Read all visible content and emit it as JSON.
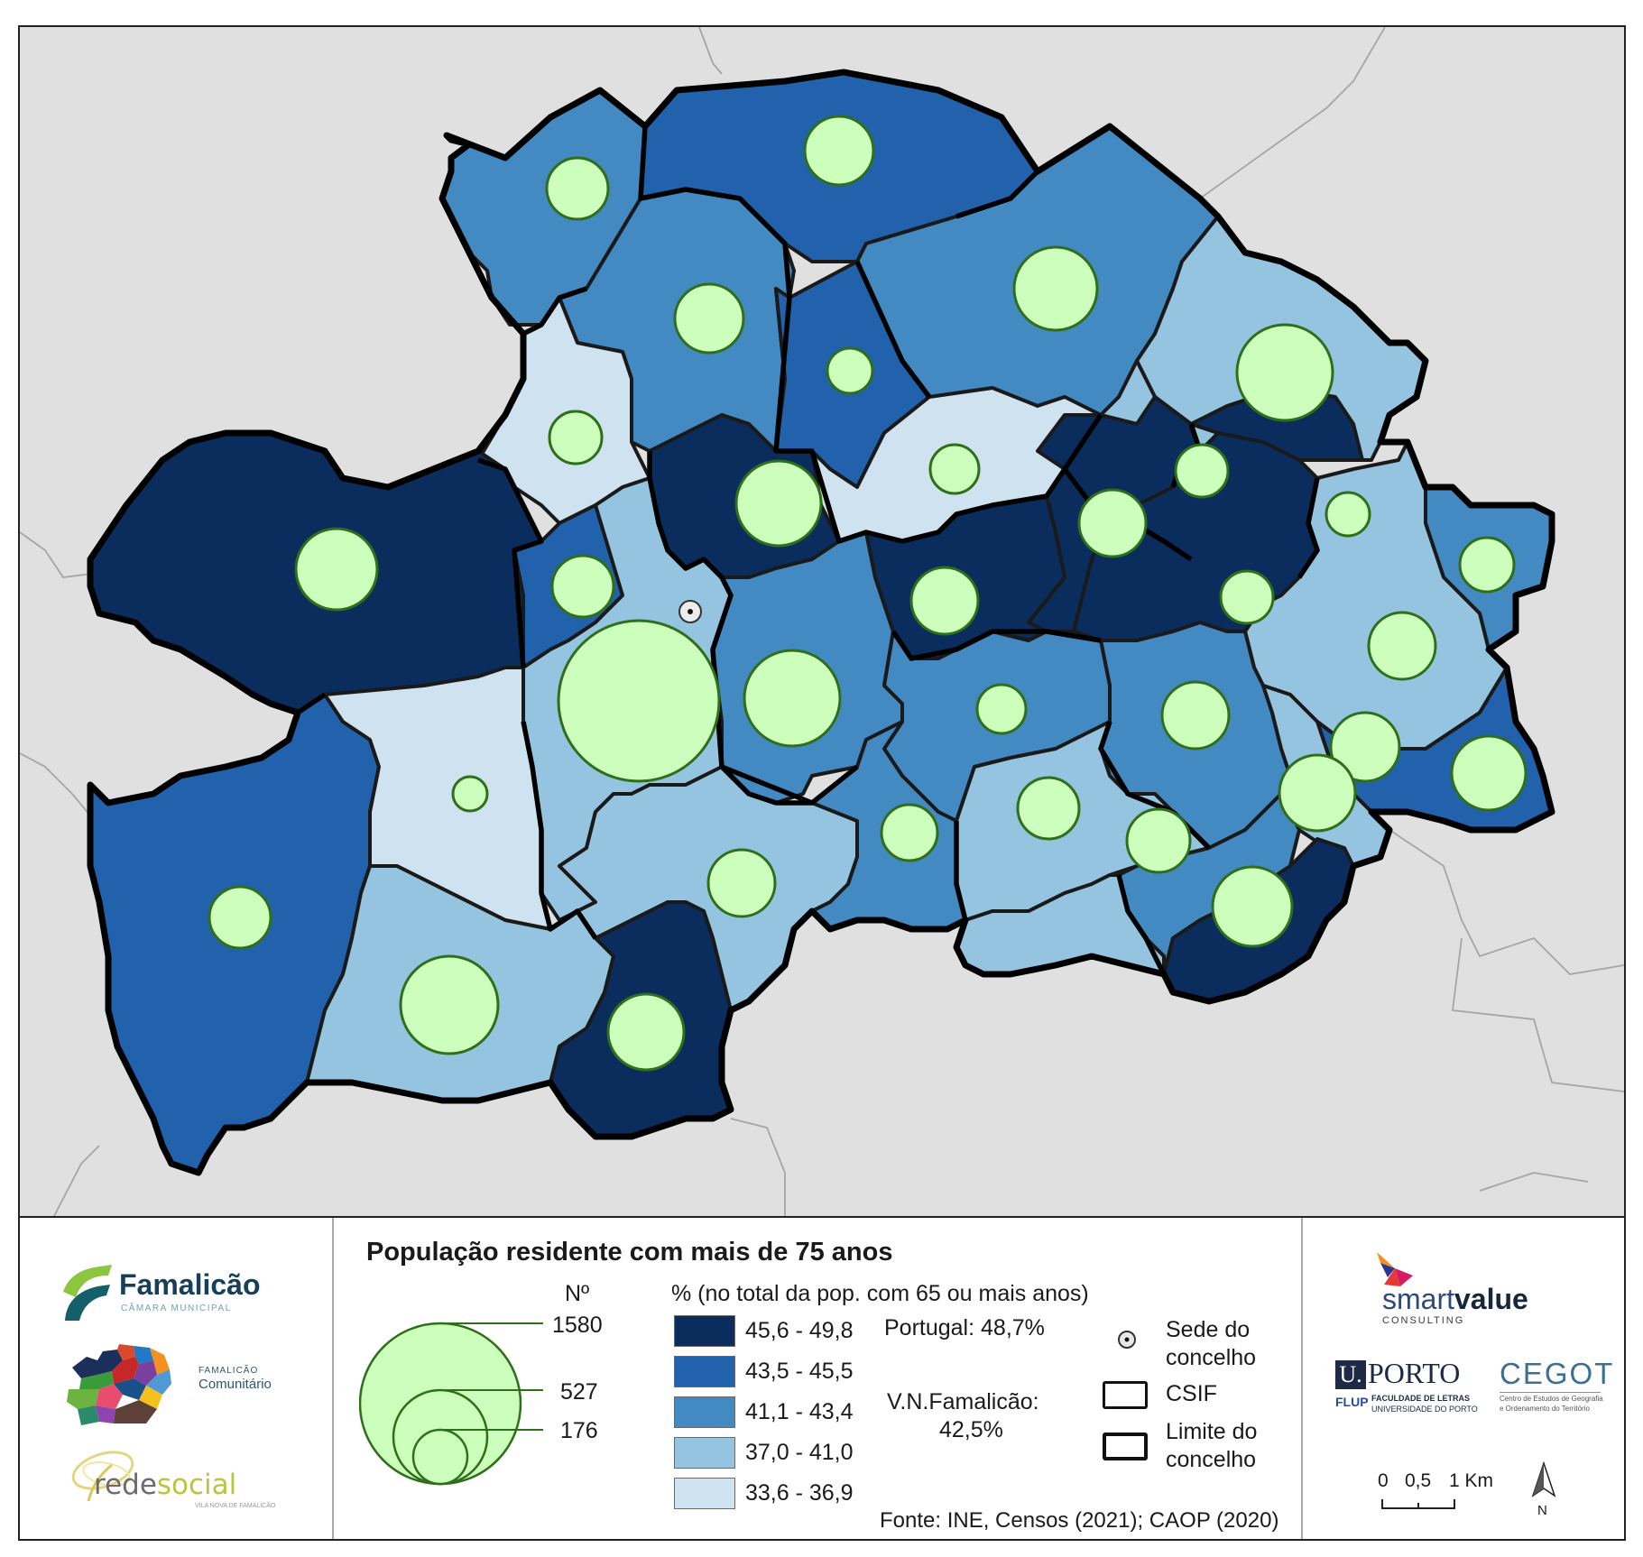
{
  "legend": {
    "title": "População residente com mais de 75 anos",
    "count_header": "Nº",
    "count_values": [
      "1580",
      "527",
      "176"
    ],
    "pct_header": "% (no total da pop. com 65 ou mais anos)",
    "classes": [
      {
        "label": "45,6 - 49,8",
        "color": "#0b2d5e"
      },
      {
        "label": "43,5 - 45,5",
        "color": "#2261ab"
      },
      {
        "label": "41,1 - 43,4",
        "color": "#4389c2"
      },
      {
        "label": "37,0 - 41,0",
        "color": "#94c4df"
      },
      {
        "label": "33,6 - 36,9",
        "color": "#cfe2f0"
      }
    ],
    "portugal": "Portugal: 48,7%",
    "vnf_line1": "V.N.Famalicão:",
    "vnf_line2": "42,5%",
    "sede_line1": "Sede do",
    "sede_line2": "concelho",
    "csif": "CSIF",
    "limite_line1": "Limite do",
    "limite_line2": "concelho",
    "source": "Fonte: INE, Censos (2021); CAOP (2020)",
    "scale_labels": [
      "0",
      "0,5",
      "1 Km"
    ],
    "north": "N",
    "bubble_color": "#ccffbb",
    "bubble_stroke": "#2f6e1a"
  },
  "logos": {
    "famalicao_name": "Famalicão",
    "famalicao_sub": "CÂMARA MUNICIPAL",
    "comunitario_small": "FAMALICÃO",
    "comunitario": "Comunitário",
    "redesocial_red": "rede",
    "redesocial_social": "social",
    "redesocial_sub": "VILA NOVA DE FAMALICÃO",
    "smartvalue_smart": "smart",
    "smartvalue_value": "value",
    "smartvalue_sub": "CONSULTING",
    "uporto_u": "U.",
    "uporto_porto": "PORTO",
    "flup": "FLUP",
    "flup_line1": "FACULDADE DE LETRAS",
    "flup_line2": "UNIVERSIDADE DO PORTO",
    "cegot": "CEGOT",
    "cegot_line1": "Centro de Estudos de Geografia",
    "cegot_line2": "e Ordenamento do Território"
  }
}
